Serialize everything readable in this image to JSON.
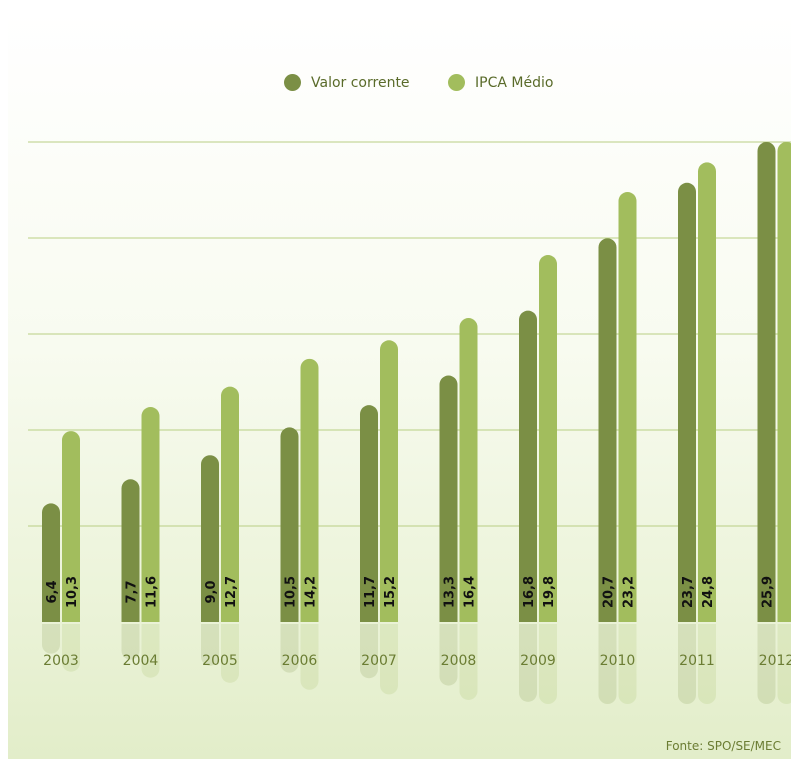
{
  "chart_data": {
    "type": "bar",
    "title": "",
    "xlabel": "",
    "ylabel": "",
    "categories": [
      "2003",
      "2004",
      "2005",
      "2006",
      "2007",
      "2008",
      "2009",
      "2010",
      "2011",
      "2012"
    ],
    "series": [
      {
        "name": "Valor corrente",
        "color": "#7b8f45",
        "values": [
          6.4,
          7.7,
          9.0,
          10.5,
          11.7,
          13.3,
          16.8,
          20.7,
          23.7,
          25.9
        ],
        "labels": [
          "6,4",
          "7,7",
          "9,0",
          "10,5",
          "11,7",
          "13,3",
          "16,8",
          "20,7",
          "23,7",
          "25,9"
        ]
      },
      {
        "name": "IPCA Médio",
        "color": "#a2bd5d",
        "values": [
          10.3,
          11.6,
          12.7,
          14.2,
          15.2,
          16.4,
          19.8,
          23.2,
          24.8,
          25.9
        ],
        "labels": [
          "10,3",
          "11,6",
          "12,7",
          "14,2",
          "15,2",
          "16,4",
          "19,8",
          "23,2",
          "24,8",
          ""
        ]
      }
    ],
    "ylim": [
      0,
      25.9
    ],
    "grid": true,
    "legend": "top-center",
    "source": "Fonte: SPO/SE/MEC"
  }
}
